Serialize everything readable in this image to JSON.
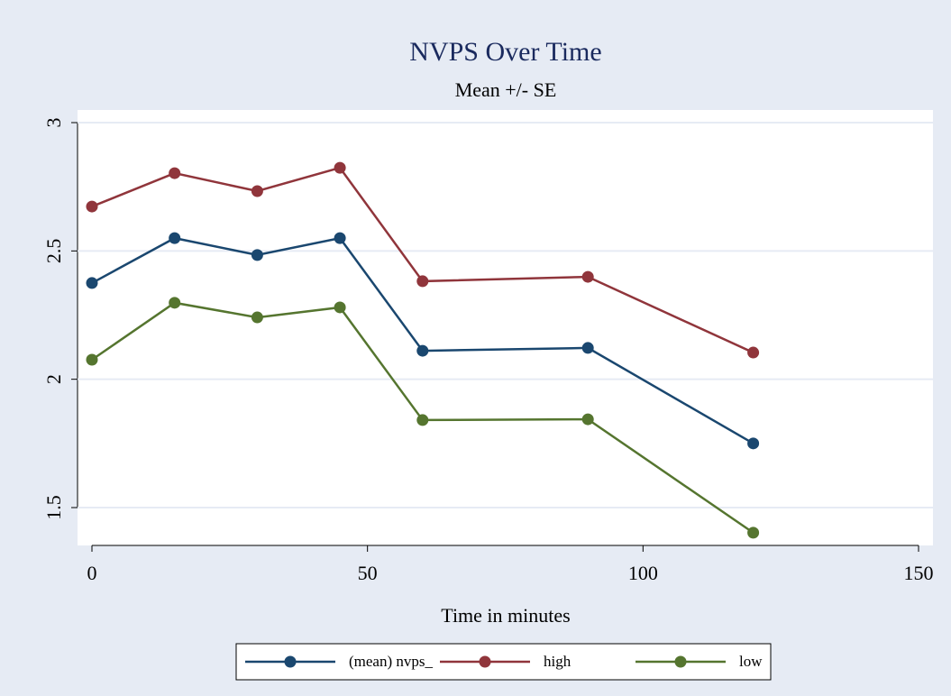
{
  "chart_data": {
    "type": "line",
    "title": "NVPS Over Time",
    "subtitle": "Mean +/- SE",
    "xlabel": "Time in minutes",
    "x": [
      0,
      15,
      30,
      45,
      60,
      90,
      120
    ],
    "series": [
      {
        "name": "(mean) nvps_",
        "color": "#1a476f",
        "values": [
          2.375,
          2.55,
          2.484,
          2.55,
          2.111,
          2.122,
          1.75
        ]
      },
      {
        "name": "high",
        "color": "#90353b",
        "values": [
          2.673,
          2.803,
          2.733,
          2.824,
          2.382,
          2.399,
          2.104
        ]
      },
      {
        "name": "low",
        "color": "#55752f",
        "values": [
          2.076,
          2.298,
          2.241,
          2.28,
          1.841,
          1.844,
          1.402
        ]
      }
    ],
    "xlim": [
      0,
      150
    ],
    "xticks": [
      0,
      50,
      100,
      150
    ],
    "ylim": [
      1.5,
      3
    ],
    "yticks": [
      1.5,
      2,
      2.5,
      3
    ],
    "grid": true,
    "legend": "bottom"
  }
}
